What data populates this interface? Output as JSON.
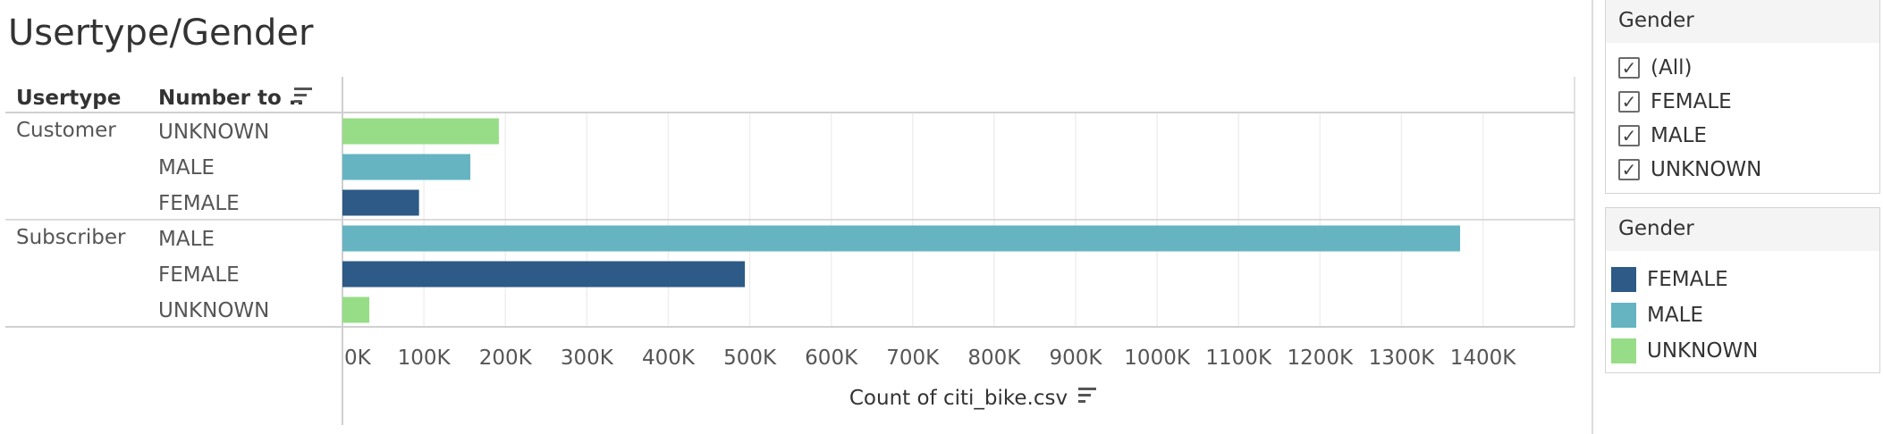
{
  "title": "Usertype/Gender",
  "colors": {
    "FEMALE": "#2d5a86",
    "MALE": "#66b4c2",
    "UNKNOWN": "#97dd87"
  },
  "chart_data": {
    "type": "bar",
    "orientation": "horizontal",
    "title": "Usertype/Gender",
    "row_headers": [
      "Usertype",
      "Number to .."
    ],
    "groups": [
      {
        "usertype": "Customer",
        "rows": [
          {
            "gender": "UNKNOWN",
            "value": 192000
          },
          {
            "gender": "MALE",
            "value": 157000
          },
          {
            "gender": "FEMALE",
            "value": 94000
          }
        ]
      },
      {
        "usertype": "Subscriber",
        "rows": [
          {
            "gender": "MALE",
            "value": 1372000
          },
          {
            "gender": "FEMALE",
            "value": 494000
          },
          {
            "gender": "UNKNOWN",
            "value": 33000
          }
        ]
      }
    ],
    "xlabel": "Count of citi_bike.csv",
    "xlim": [
      0,
      1440000
    ],
    "xticks": [
      0,
      100000,
      200000,
      300000,
      400000,
      500000,
      600000,
      700000,
      800000,
      900000,
      1000000,
      1100000,
      1200000,
      1300000,
      1400000
    ],
    "xtick_labels": [
      "0K",
      "100K",
      "200K",
      "300K",
      "400K",
      "500K",
      "600K",
      "700K",
      "800K",
      "900K",
      "1000K",
      "1100K",
      "1200K",
      "1300K",
      "1400K"
    ],
    "grid": true
  },
  "filter": {
    "title": "Gender",
    "options": [
      {
        "label": "(All)",
        "checked": true
      },
      {
        "label": "FEMALE",
        "checked": true
      },
      {
        "label": "MALE",
        "checked": true
      },
      {
        "label": "UNKNOWN",
        "checked": true
      }
    ],
    "check_glyph": "✓"
  },
  "legend": {
    "title": "Gender",
    "items": [
      "FEMALE",
      "MALE",
      "UNKNOWN"
    ]
  }
}
